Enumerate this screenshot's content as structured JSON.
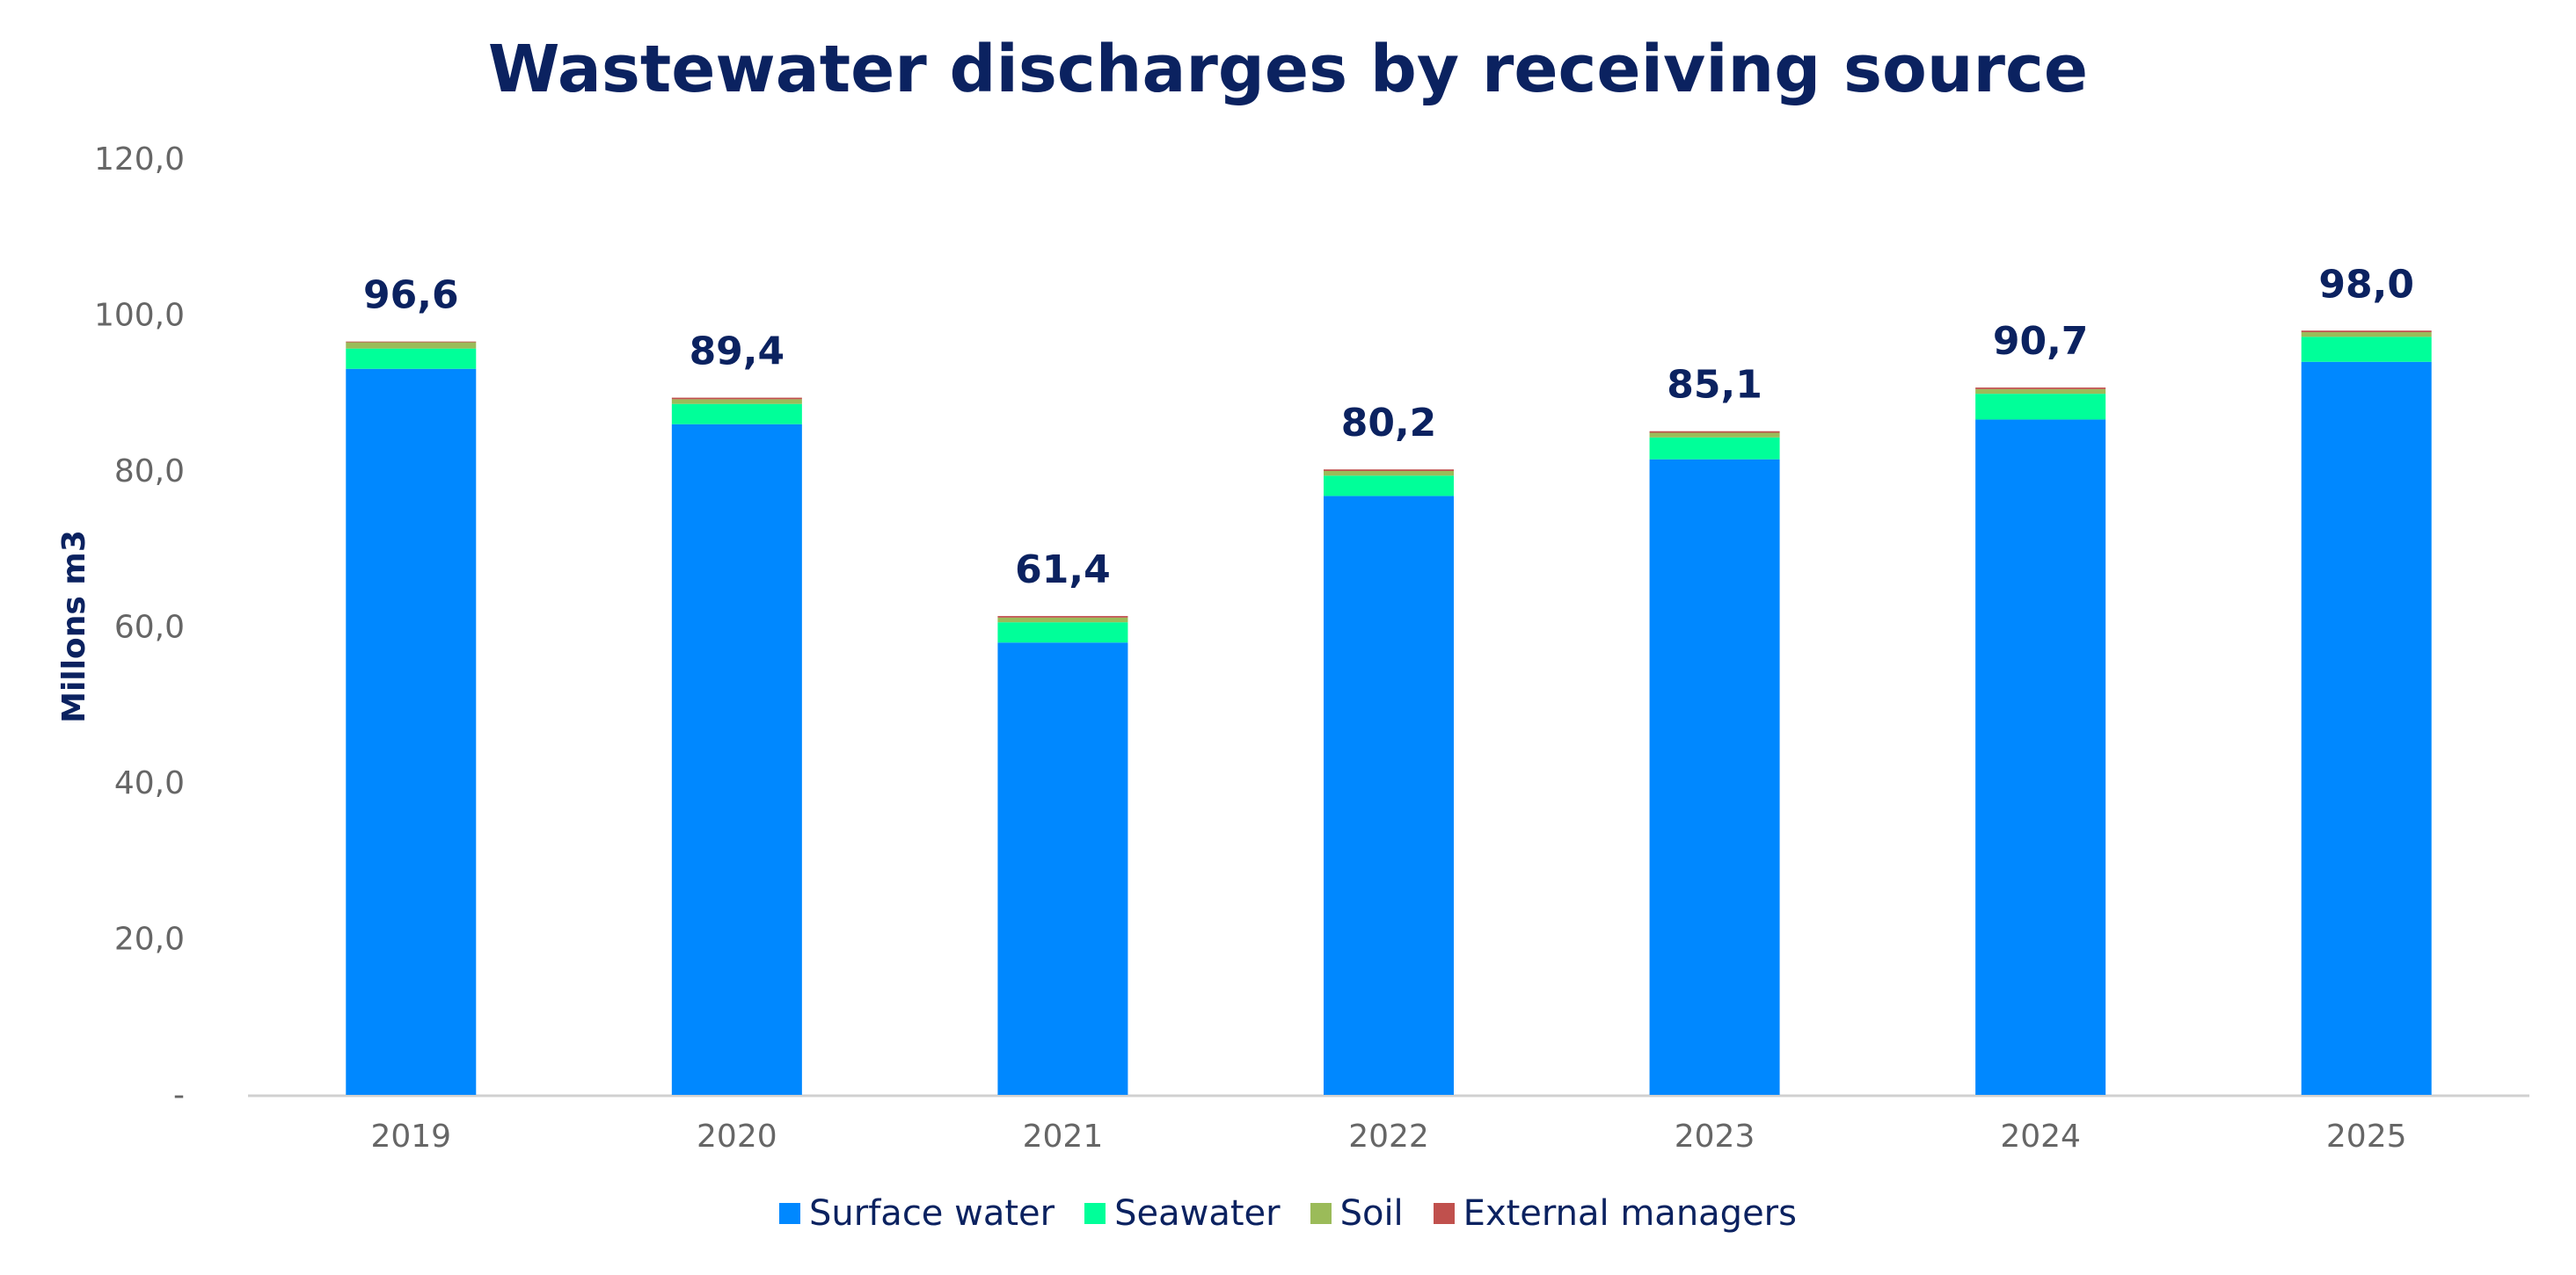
{
  "chart_data": {
    "type": "bar",
    "stacked": true,
    "title": "Wastewater discharges by receiving source",
    "xlabel": "",
    "ylabel": "Millons m3",
    "ylim": [
      0,
      120
    ],
    "yticks": [
      "-",
      "20,0",
      "40,0",
      "60,0",
      "80,0",
      "100,0",
      "120,0"
    ],
    "categories": [
      "2019",
      "2020",
      "2021",
      "2022",
      "2023",
      "2024",
      "2025"
    ],
    "totals": [
      "96,6",
      "89,4",
      "61,4",
      "80,2",
      "85,1",
      "90,7",
      "98,0"
    ],
    "series": [
      {
        "name": "Surface water",
        "color": "#0088ff",
        "values": [
          93.1,
          86.0,
          58.0,
          76.8,
          81.5,
          86.6,
          94.0
        ]
      },
      {
        "name": "Seawater",
        "color": "#00ff99",
        "values": [
          2.6,
          2.6,
          2.6,
          2.6,
          2.8,
          3.3,
          3.2
        ]
      },
      {
        "name": "Soil",
        "color": "#9bbb59",
        "values": [
          0.8,
          0.6,
          0.6,
          0.6,
          0.6,
          0.6,
          0.6
        ]
      },
      {
        "name": "External managers",
        "color": "#c0504d",
        "values": [
          0.1,
          0.2,
          0.2,
          0.2,
          0.2,
          0.2,
          0.2
        ]
      }
    ],
    "legend": "bottom",
    "grid": false
  }
}
